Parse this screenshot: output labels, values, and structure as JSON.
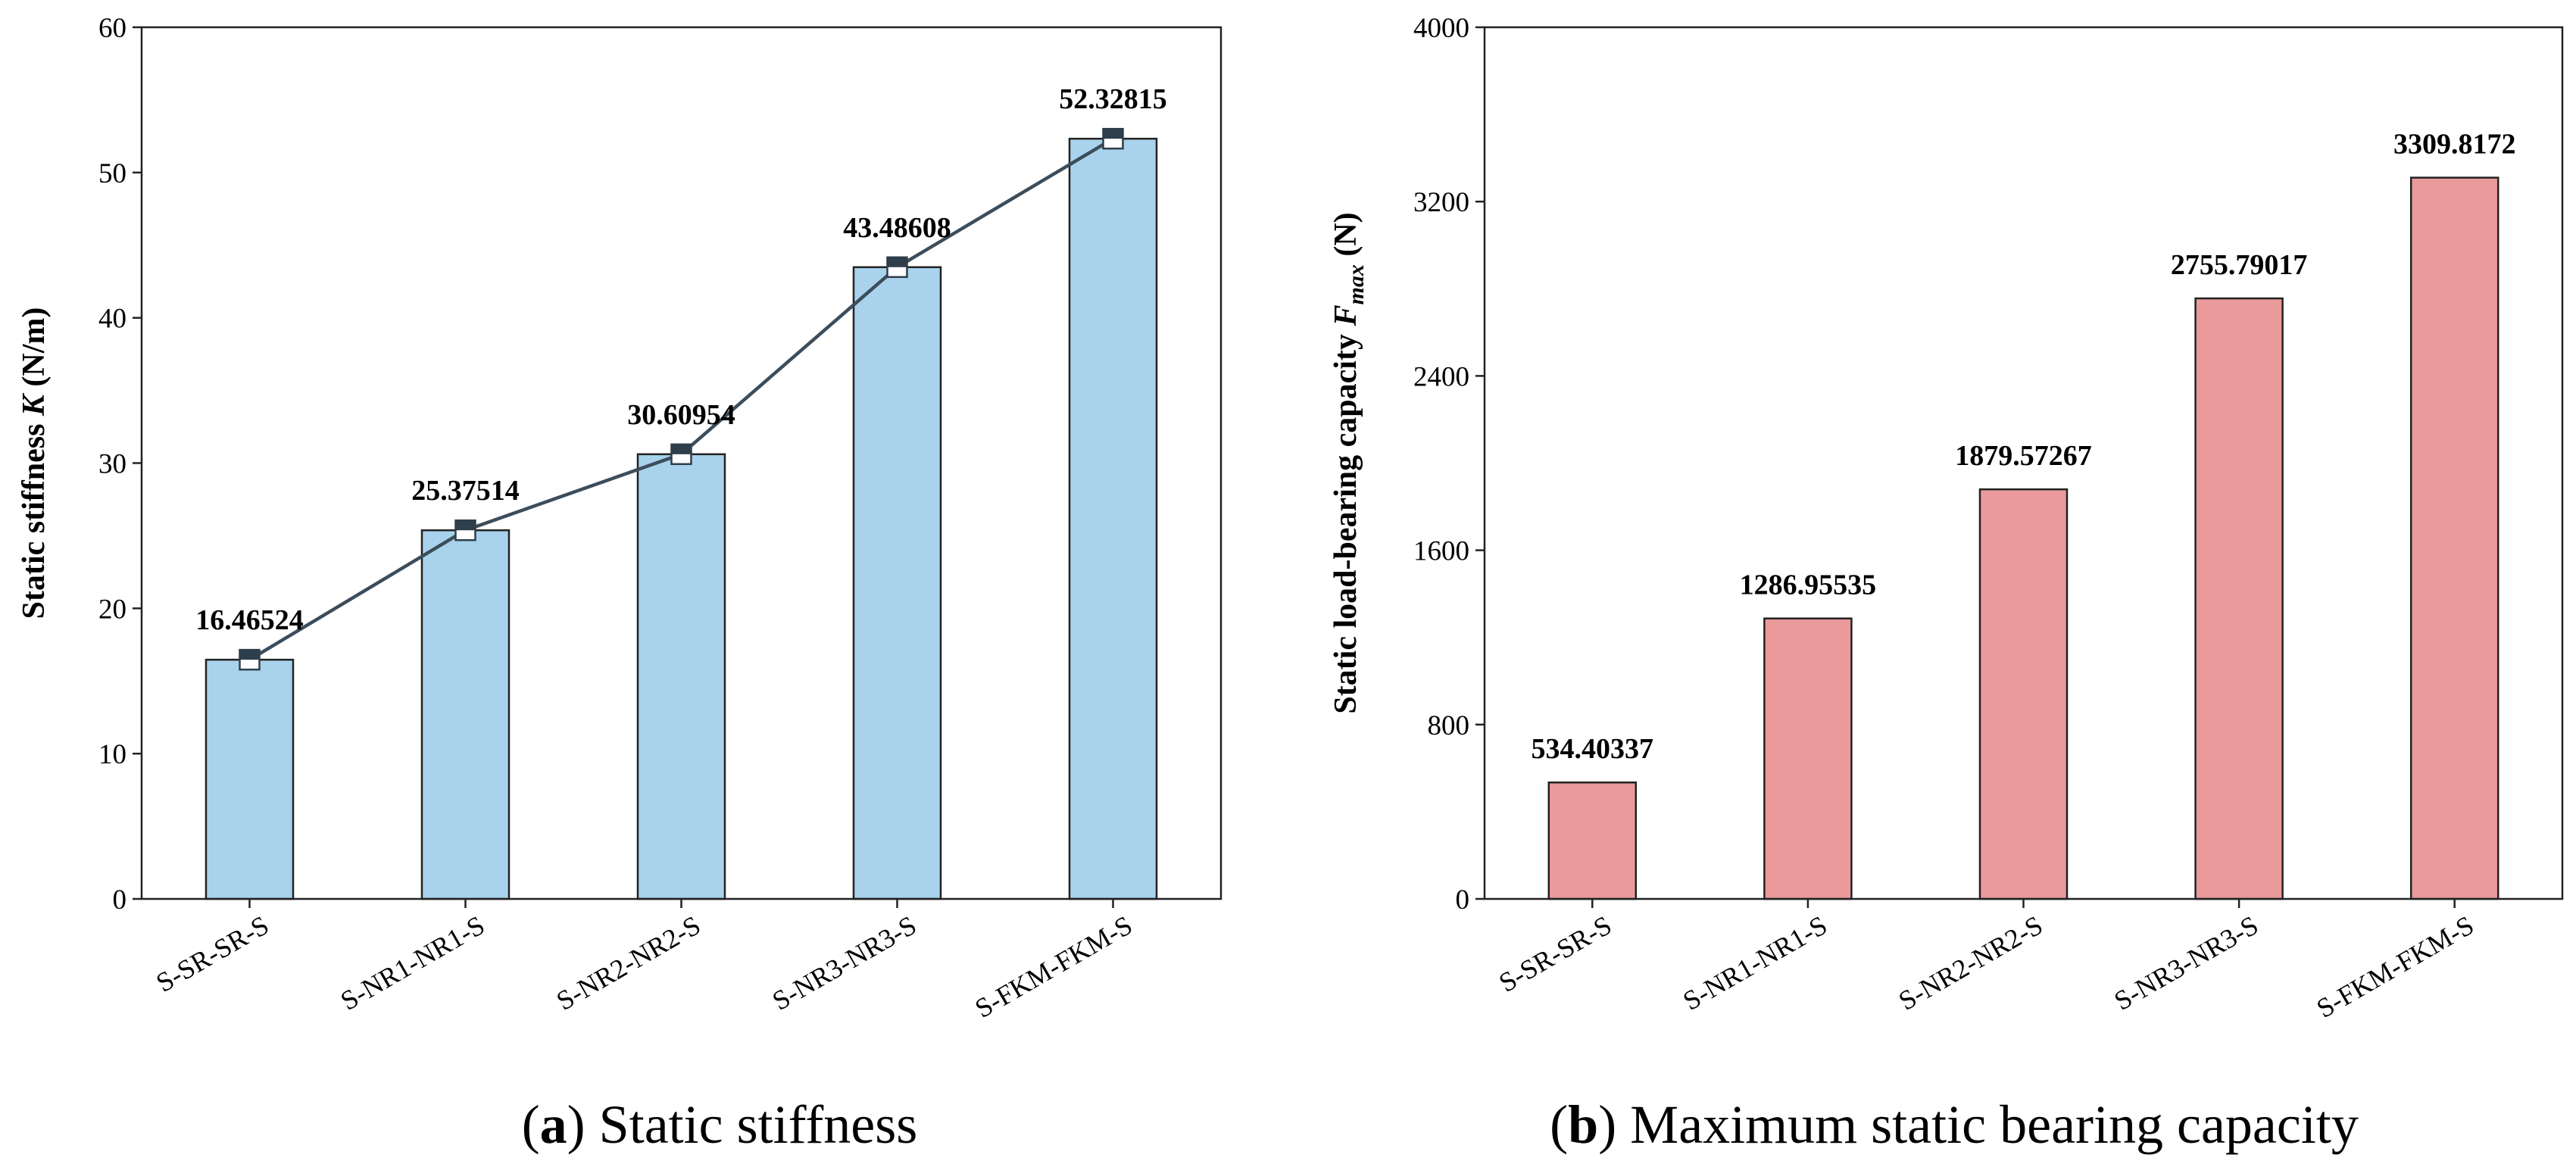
{
  "chart_data": [
    {
      "id": "a",
      "type": "bar+line",
      "title": "",
      "categories": [
        "S-SR-SR-S",
        "S-NR1-NR1-S",
        "S-NR2-NR2-S",
        "S-NR3-NR3-S",
        "S-FKM-FKM-S"
      ],
      "values": [
        16.46524,
        25.37514,
        30.60954,
        43.48608,
        52.32815
      ],
      "value_labels": [
        "16.46524",
        "25.37514",
        "30.60954",
        "43.48608",
        "52.32815"
      ],
      "ylabel_prefix": "Static stiffness ",
      "ylabel_italic": "K",
      "ylabel_suffix": " (N/m)",
      "xlabel": "",
      "ylim": [
        0,
        60
      ],
      "yticks": [
        0,
        10,
        20,
        30,
        40,
        50,
        60
      ],
      "ytick_labels": [
        "0",
        "10",
        "20",
        "30",
        "40",
        "50",
        "60"
      ],
      "grid": false,
      "bar_color": "#a9d3ec",
      "line_color": "#3c4d5c",
      "marker_color": "#2f3e4b",
      "show_line": true
    },
    {
      "id": "b",
      "type": "bar",
      "title": "",
      "categories": [
        "S-SR-SR-S",
        "S-NR1-NR1-S",
        "S-NR2-NR2-S",
        "S-NR3-NR3-S",
        "S-FKM-FKM-S"
      ],
      "values": [
        534.40337,
        1286.95535,
        1879.57267,
        2755.79017,
        3309.8172
      ],
      "value_labels": [
        "534.40337",
        "1286.95535",
        "1879.57267",
        "2755.79017",
        "3309.8172"
      ],
      "ylabel_prefix": "Static load-bearing capacity ",
      "ylabel_italic": "F",
      "ylabel_sub": "max",
      "ylabel_suffix": " (N)",
      "xlabel": "",
      "ylim": [
        0,
        4000
      ],
      "yticks": [
        0,
        800,
        1600,
        2400,
        3200,
        4000
      ],
      "ytick_labels": [
        "0",
        "800",
        "1600",
        "2400",
        "3200",
        "4000"
      ],
      "grid": false,
      "bar_color": "#eb9a9c",
      "show_line": false
    }
  ],
  "captions": {
    "a_letter": "a",
    "a_text": " Static stiffness",
    "b_letter": "b",
    "b_text": " Maximum static bearing capacity"
  }
}
